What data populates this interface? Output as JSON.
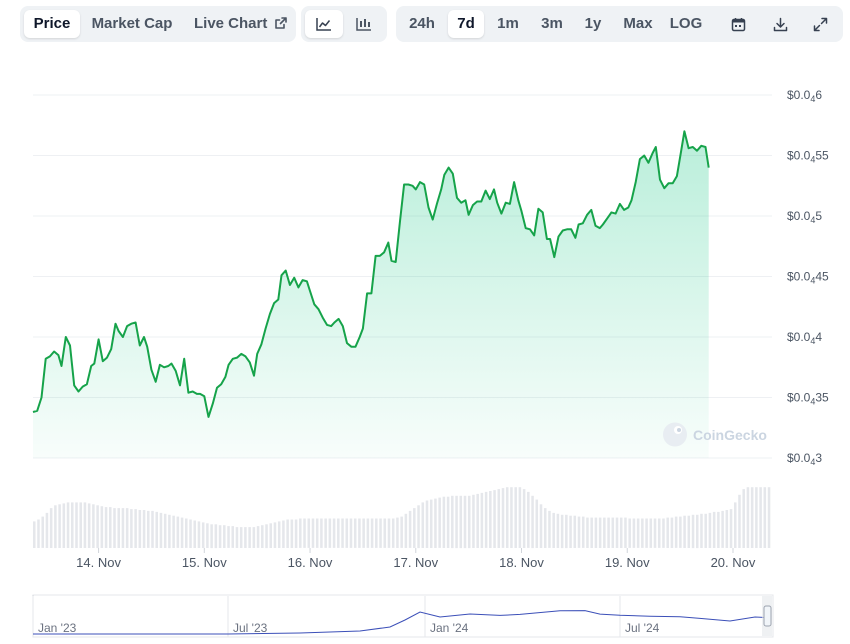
{
  "toolbar": {
    "tabs": [
      {
        "label": "Price",
        "active": true
      },
      {
        "label": "Market Cap",
        "active": false
      },
      {
        "label": "Live Chart",
        "active": false,
        "icon": "external-link-icon"
      }
    ],
    "view_modes": [
      {
        "icon": "line-chart-icon",
        "active": true
      },
      {
        "icon": "candlestick-chart-icon",
        "active": false
      }
    ],
    "ranges": [
      {
        "label": "24h",
        "active": false
      },
      {
        "label": "7d",
        "active": true
      },
      {
        "label": "1m",
        "active": false
      },
      {
        "label": "3m",
        "active": false
      },
      {
        "label": "1y",
        "active": false
      },
      {
        "label": "Max",
        "active": false
      },
      {
        "label": "LOG",
        "active": false
      }
    ],
    "actions": [
      "calendar-icon",
      "download-icon",
      "expand-icon"
    ]
  },
  "watermark": "CoinGecko",
  "colors": {
    "line": "#16a34a",
    "fill": "#16c784",
    "volume": "#e5e7eb",
    "nav_line": "#3b4fb8"
  },
  "chart_data": [
    {
      "type": "area",
      "y_axis": {
        "position": "right",
        "ticks": [
          {
            "prefix": "$0.0",
            "sub": "4",
            "digits": "3",
            "value": 3e-05
          },
          {
            "prefix": "$0.0",
            "sub": "4",
            "digits": "35",
            "value": 3.5e-05
          },
          {
            "prefix": "$0.0",
            "sub": "4",
            "digits": "4",
            "value": 4e-05
          },
          {
            "prefix": "$0.0",
            "sub": "4",
            "digits": "45",
            "value": 4.5e-05
          },
          {
            "prefix": "$0.0",
            "sub": "4",
            "digits": "5",
            "value": 5e-05
          },
          {
            "prefix": "$0.0",
            "sub": "4",
            "digits": "55",
            "value": 5.5e-05
          },
          {
            "prefix": "$0.0",
            "sub": "4",
            "digits": "6",
            "value": 6e-05
          }
        ],
        "range": [
          3e-05,
          6e-05
        ]
      },
      "x_axis": {
        "labels": [
          "14. Nov",
          "15. Nov",
          "16. Nov",
          "17. Nov",
          "18. Nov",
          "19. Nov",
          "20. Nov"
        ],
        "range_days": [
          13.38,
          20.35
        ]
      },
      "grid": true,
      "series": [
        {
          "points": [
            [
              13.38,
              33.8
            ],
            [
              13.42,
              33.9
            ],
            [
              13.46,
              35.0
            ],
            [
              13.5,
              38.2
            ],
            [
              13.54,
              38.4
            ],
            [
              13.58,
              38.8
            ],
            [
              13.62,
              38.5
            ],
            [
              13.65,
              37.6
            ],
            [
              13.69,
              40.0
            ],
            [
              13.73,
              39.3
            ],
            [
              13.77,
              36.0
            ],
            [
              13.81,
              35.5
            ],
            [
              13.85,
              35.9
            ],
            [
              13.89,
              36.1
            ],
            [
              13.93,
              37.6
            ],
            [
              13.96,
              37.8
            ],
            [
              14.0,
              39.8
            ],
            [
              14.04,
              38.0
            ],
            [
              14.08,
              38.3
            ],
            [
              14.12,
              39.0
            ],
            [
              14.16,
              41.1
            ],
            [
              14.19,
              40.5
            ],
            [
              14.23,
              40.0
            ],
            [
              14.27,
              40.9
            ],
            [
              14.31,
              41.1
            ],
            [
              14.35,
              41.2
            ],
            [
              14.39,
              39.3
            ],
            [
              14.43,
              40.0
            ],
            [
              14.46,
              39.2
            ],
            [
              14.5,
              37.3
            ],
            [
              14.54,
              36.3
            ],
            [
              14.58,
              37.7
            ],
            [
              14.62,
              37.5
            ],
            [
              14.66,
              37.6
            ],
            [
              14.69,
              37.8
            ],
            [
              14.73,
              37.2
            ],
            [
              14.77,
              36.0
            ],
            [
              14.81,
              38.2
            ],
            [
              14.85,
              35.4
            ],
            [
              14.89,
              35.5
            ],
            [
              14.93,
              35.3
            ],
            [
              14.96,
              35.3
            ],
            [
              15.0,
              35.1
            ],
            [
              15.04,
              33.4
            ],
            [
              15.08,
              34.5
            ],
            [
              15.12,
              35.8
            ],
            [
              15.16,
              36.1
            ],
            [
              15.2,
              36.7
            ],
            [
              15.23,
              37.7
            ],
            [
              15.27,
              38.2
            ],
            [
              15.31,
              38.3
            ],
            [
              15.35,
              38.6
            ],
            [
              15.39,
              38.4
            ],
            [
              15.43,
              37.9
            ],
            [
              15.47,
              36.8
            ],
            [
              15.5,
              38.6
            ],
            [
              15.54,
              39.4
            ],
            [
              15.58,
              40.7
            ],
            [
              15.62,
              41.9
            ],
            [
              15.66,
              42.8
            ],
            [
              15.7,
              43.1
            ],
            [
              15.73,
              45.1
            ],
            [
              15.77,
              45.5
            ],
            [
              15.81,
              44.3
            ],
            [
              15.85,
              44.9
            ],
            [
              15.89,
              44.1
            ],
            [
              15.93,
              44.7
            ],
            [
              15.97,
              44.6
            ],
            [
              16.0,
              43.8
            ],
            [
              16.04,
              42.7
            ],
            [
              16.08,
              42.3
            ],
            [
              16.12,
              41.6
            ],
            [
              16.16,
              41.0
            ],
            [
              16.2,
              40.9
            ],
            [
              16.23,
              41.2
            ],
            [
              16.27,
              41.5
            ],
            [
              16.31,
              40.9
            ],
            [
              16.35,
              39.5
            ],
            [
              16.39,
              39.2
            ],
            [
              16.43,
              39.2
            ],
            [
              16.47,
              40.0
            ],
            [
              16.5,
              40.7
            ],
            [
              16.54,
              43.6
            ],
            [
              16.58,
              43.6
            ],
            [
              16.62,
              46.7
            ],
            [
              16.66,
              46.7
            ],
            [
              16.7,
              47.0
            ],
            [
              16.74,
              47.8
            ],
            [
              16.77,
              46.3
            ],
            [
              16.81,
              46.2
            ],
            [
              16.85,
              49.5
            ],
            [
              16.89,
              52.6
            ],
            [
              16.93,
              52.6
            ],
            [
              16.97,
              52.5
            ],
            [
              17.0,
              52.2
            ],
            [
              17.04,
              52.8
            ],
            [
              17.08,
              52.6
            ],
            [
              17.12,
              50.7
            ],
            [
              17.16,
              49.7
            ],
            [
              17.2,
              51.0
            ],
            [
              17.24,
              52.2
            ],
            [
              17.27,
              53.4
            ],
            [
              17.31,
              54.0
            ],
            [
              17.35,
              53.5
            ],
            [
              17.39,
              51.5
            ],
            [
              17.43,
              51.1
            ],
            [
              17.47,
              51.3
            ],
            [
              17.5,
              50.1
            ],
            [
              17.54,
              50.9
            ],
            [
              17.58,
              51.2
            ],
            [
              17.62,
              51.2
            ],
            [
              17.66,
              52.1
            ],
            [
              17.7,
              51.4
            ],
            [
              17.74,
              52.2
            ],
            [
              17.77,
              51.1
            ],
            [
              17.81,
              50.2
            ],
            [
              17.85,
              51.1
            ],
            [
              17.89,
              51.0
            ],
            [
              17.93,
              52.8
            ],
            [
              17.97,
              51.3
            ],
            [
              18.0,
              50.4
            ],
            [
              18.04,
              49.0
            ],
            [
              18.08,
              48.9
            ],
            [
              18.12,
              48.4
            ],
            [
              18.16,
              50.6
            ],
            [
              18.2,
              50.3
            ],
            [
              18.24,
              48.1
            ],
            [
              18.27,
              48.1
            ],
            [
              18.31,
              46.6
            ],
            [
              18.35,
              48.3
            ],
            [
              18.39,
              48.8
            ],
            [
              18.43,
              48.9
            ],
            [
              18.47,
              48.9
            ],
            [
              18.51,
              48.2
            ],
            [
              18.54,
              49.3
            ],
            [
              18.58,
              49.4
            ],
            [
              18.62,
              50.1
            ],
            [
              18.66,
              50.5
            ],
            [
              18.7,
              49.2
            ],
            [
              18.74,
              49.0
            ],
            [
              18.77,
              49.3
            ],
            [
              18.81,
              49.8
            ],
            [
              18.85,
              50.3
            ],
            [
              18.89,
              50.2
            ],
            [
              18.93,
              51.0
            ],
            [
              18.97,
              50.5
            ],
            [
              19.01,
              50.7
            ],
            [
              19.04,
              51.3
            ],
            [
              19.08,
              52.8
            ],
            [
              19.12,
              54.7
            ],
            [
              19.16,
              55.0
            ],
            [
              19.2,
              54.4
            ],
            [
              19.24,
              55.2
            ],
            [
              19.27,
              55.7
            ],
            [
              19.31,
              53.0
            ],
            [
              19.35,
              52.3
            ],
            [
              19.39,
              52.7
            ],
            [
              19.43,
              52.7
            ],
            [
              19.47,
              53.3
            ],
            [
              19.51,
              55.4
            ],
            [
              19.54,
              57.0
            ],
            [
              19.58,
              55.6
            ],
            [
              19.62,
              55.7
            ],
            [
              19.66,
              55.4
            ],
            [
              19.7,
              55.8
            ],
            [
              19.74,
              55.7
            ],
            [
              19.77,
              54.0
            ]
          ]
        }
      ]
    },
    {
      "type": "bar",
      "title": "volume",
      "values": [
        28,
        30,
        33,
        37,
        42,
        45,
        46,
        47,
        48,
        48,
        48,
        48,
        48,
        47,
        46,
        45,
        44,
        43,
        43,
        42,
        42,
        42,
        42,
        41,
        41,
        40,
        40,
        39,
        39,
        38,
        37,
        36,
        35,
        34,
        33,
        32,
        31,
        30,
        29,
        28,
        27,
        26,
        25,
        25,
        24,
        24,
        23,
        23,
        22,
        22,
        22,
        22,
        22,
        23,
        24,
        25,
        26,
        27,
        28,
        29,
        30,
        30,
        30,
        31,
        31,
        31,
        31,
        31,
        31,
        31,
        31,
        31,
        31,
        31,
        31,
        31,
        31,
        31,
        31,
        31,
        31,
        31,
        31,
        31,
        31,
        31,
        32,
        33,
        36,
        39,
        42,
        45,
        48,
        50,
        51,
        52,
        53,
        54,
        54,
        55,
        55,
        55,
        55,
        55,
        56,
        57,
        58,
        59,
        60,
        61,
        62,
        63,
        64,
        64,
        64,
        64,
        62,
        59,
        55,
        51,
        46,
        42,
        39,
        37,
        36,
        35,
        35,
        34,
        34,
        33,
        33,
        32,
        32,
        32,
        32,
        32,
        32,
        32,
        32,
        32,
        32,
        31,
        31,
        31,
        31,
        31,
        31,
        31,
        31,
        31,
        32,
        32,
        33,
        33,
        34,
        34,
        35,
        35,
        36,
        36,
        37,
        38,
        38,
        39,
        40,
        41,
        48,
        56,
        62,
        64,
        64,
        64,
        64,
        64,
        64
      ],
      "grid": false
    },
    {
      "type": "line",
      "title": "navigator",
      "x_labels": [
        "Jan '23",
        "Jul '23",
        "Jan '24",
        "Jul '24"
      ],
      "grid": false
    }
  ]
}
